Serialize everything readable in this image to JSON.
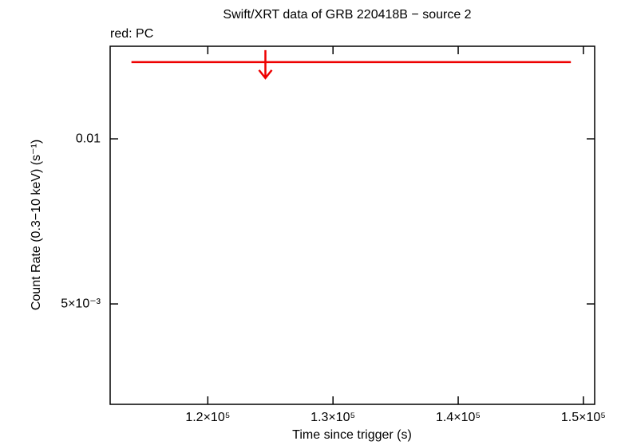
{
  "chart_data": {
    "type": "upper-limit",
    "title": "Swift/XRT data of GRB 220418B − source 2",
    "subtitle": "red: PC",
    "x_label": "Time since trigger (s)",
    "y_label": "Count Rate (0.3−10 keV) (s⁻¹)",
    "xlim": [
      112200,
      150900
    ],
    "ylim": [
      0.00328,
      0.01475
    ],
    "y_scale": "log",
    "xticks": [
      {
        "value": 120000,
        "label": "1.2×10⁵"
      },
      {
        "value": 130000,
        "label": "1.3×10⁵"
      },
      {
        "value": 140000,
        "label": "1.4×10⁵"
      },
      {
        "value": 150000,
        "label": "1.5×10⁵"
      }
    ],
    "yticks": [
      0.01,
      {
        "value": 0.005,
        "label": "5×10⁻³"
      }
    ],
    "series": [
      {
        "color": "#ee0000",
        "x": [
          124600
        ],
        "x_low": [
          113900
        ],
        "x_high": [
          149000
        ],
        "values": [
          0.0138
        ]
      }
    ]
  }
}
